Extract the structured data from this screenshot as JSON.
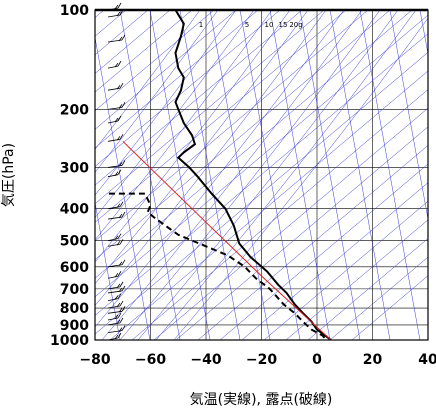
{
  "chart_data": {
    "type": "line",
    "title": "",
    "xlabel": "気温(実線), 露点(破線)",
    "ylabel": "気圧(hPa)",
    "xlim": [
      -80,
      40
    ],
    "ylim": [
      1000,
      100
    ],
    "y_scale": "log",
    "grid": true,
    "x_ticks": [
      -80,
      -60,
      -40,
      -20,
      0,
      20,
      40
    ],
    "x_tick_labels": [
      "−80",
      "−60",
      "−40",
      "−20",
      "0",
      "20",
      "40"
    ],
    "y_ticks": [
      100,
      200,
      300,
      400,
      500,
      600,
      700,
      800,
      900,
      1000
    ],
    "mixing_ratio_labels": [
      "1",
      "5",
      "10",
      "15",
      "20g"
    ],
    "series": [
      {
        "role": "temperature",
        "line": "solid",
        "color": "#000000",
        "points": [
          [
            -51,
            100
          ],
          [
            -48,
            110
          ],
          [
            -49,
            120
          ],
          [
            -51,
            135
          ],
          [
            -50,
            150
          ],
          [
            -48,
            160
          ],
          [
            -49,
            175
          ],
          [
            -51,
            190
          ],
          [
            -50,
            200
          ],
          [
            -48,
            220
          ],
          [
            -45,
            240
          ],
          [
            -44,
            255
          ],
          [
            -48,
            270
          ],
          [
            -50,
            280
          ],
          [
            -46,
            300
          ],
          [
            -43,
            320
          ],
          [
            -38,
            360
          ],
          [
            -33,
            400
          ],
          [
            -30,
            450
          ],
          [
            -28,
            510
          ],
          [
            -24,
            560
          ],
          [
            -18,
            620
          ],
          [
            -14,
            680
          ],
          [
            -11,
            720
          ],
          [
            -8,
            780
          ],
          [
            -5,
            830
          ],
          [
            -2,
            880
          ],
          [
            0,
            930
          ],
          [
            3,
            970
          ],
          [
            5,
            1000
          ]
        ]
      },
      {
        "role": "dewpoint",
        "line": "dashed",
        "color": "#000000",
        "points": [
          [
            -75,
            360
          ],
          [
            -62,
            360
          ],
          [
            -60,
            390
          ],
          [
            -61,
            410
          ],
          [
            -58,
            430
          ],
          [
            -50,
            480
          ],
          [
            -40,
            520
          ],
          [
            -32,
            555
          ],
          [
            -26,
            600
          ],
          [
            -22,
            650
          ],
          [
            -17,
            700
          ],
          [
            -12,
            780
          ],
          [
            -8,
            830
          ],
          [
            -5,
            880
          ],
          [
            -2,
            930
          ],
          [
            2,
            970
          ],
          [
            3,
            990
          ]
        ]
      },
      {
        "role": "parcel",
        "line": "solid",
        "color": "#e02020",
        "points": [
          [
            -70,
            250
          ],
          [
            -40,
            440
          ],
          [
            -20,
            640
          ],
          [
            5,
            1000
          ]
        ]
      }
    ],
    "wind_barbs_column": "left"
  }
}
